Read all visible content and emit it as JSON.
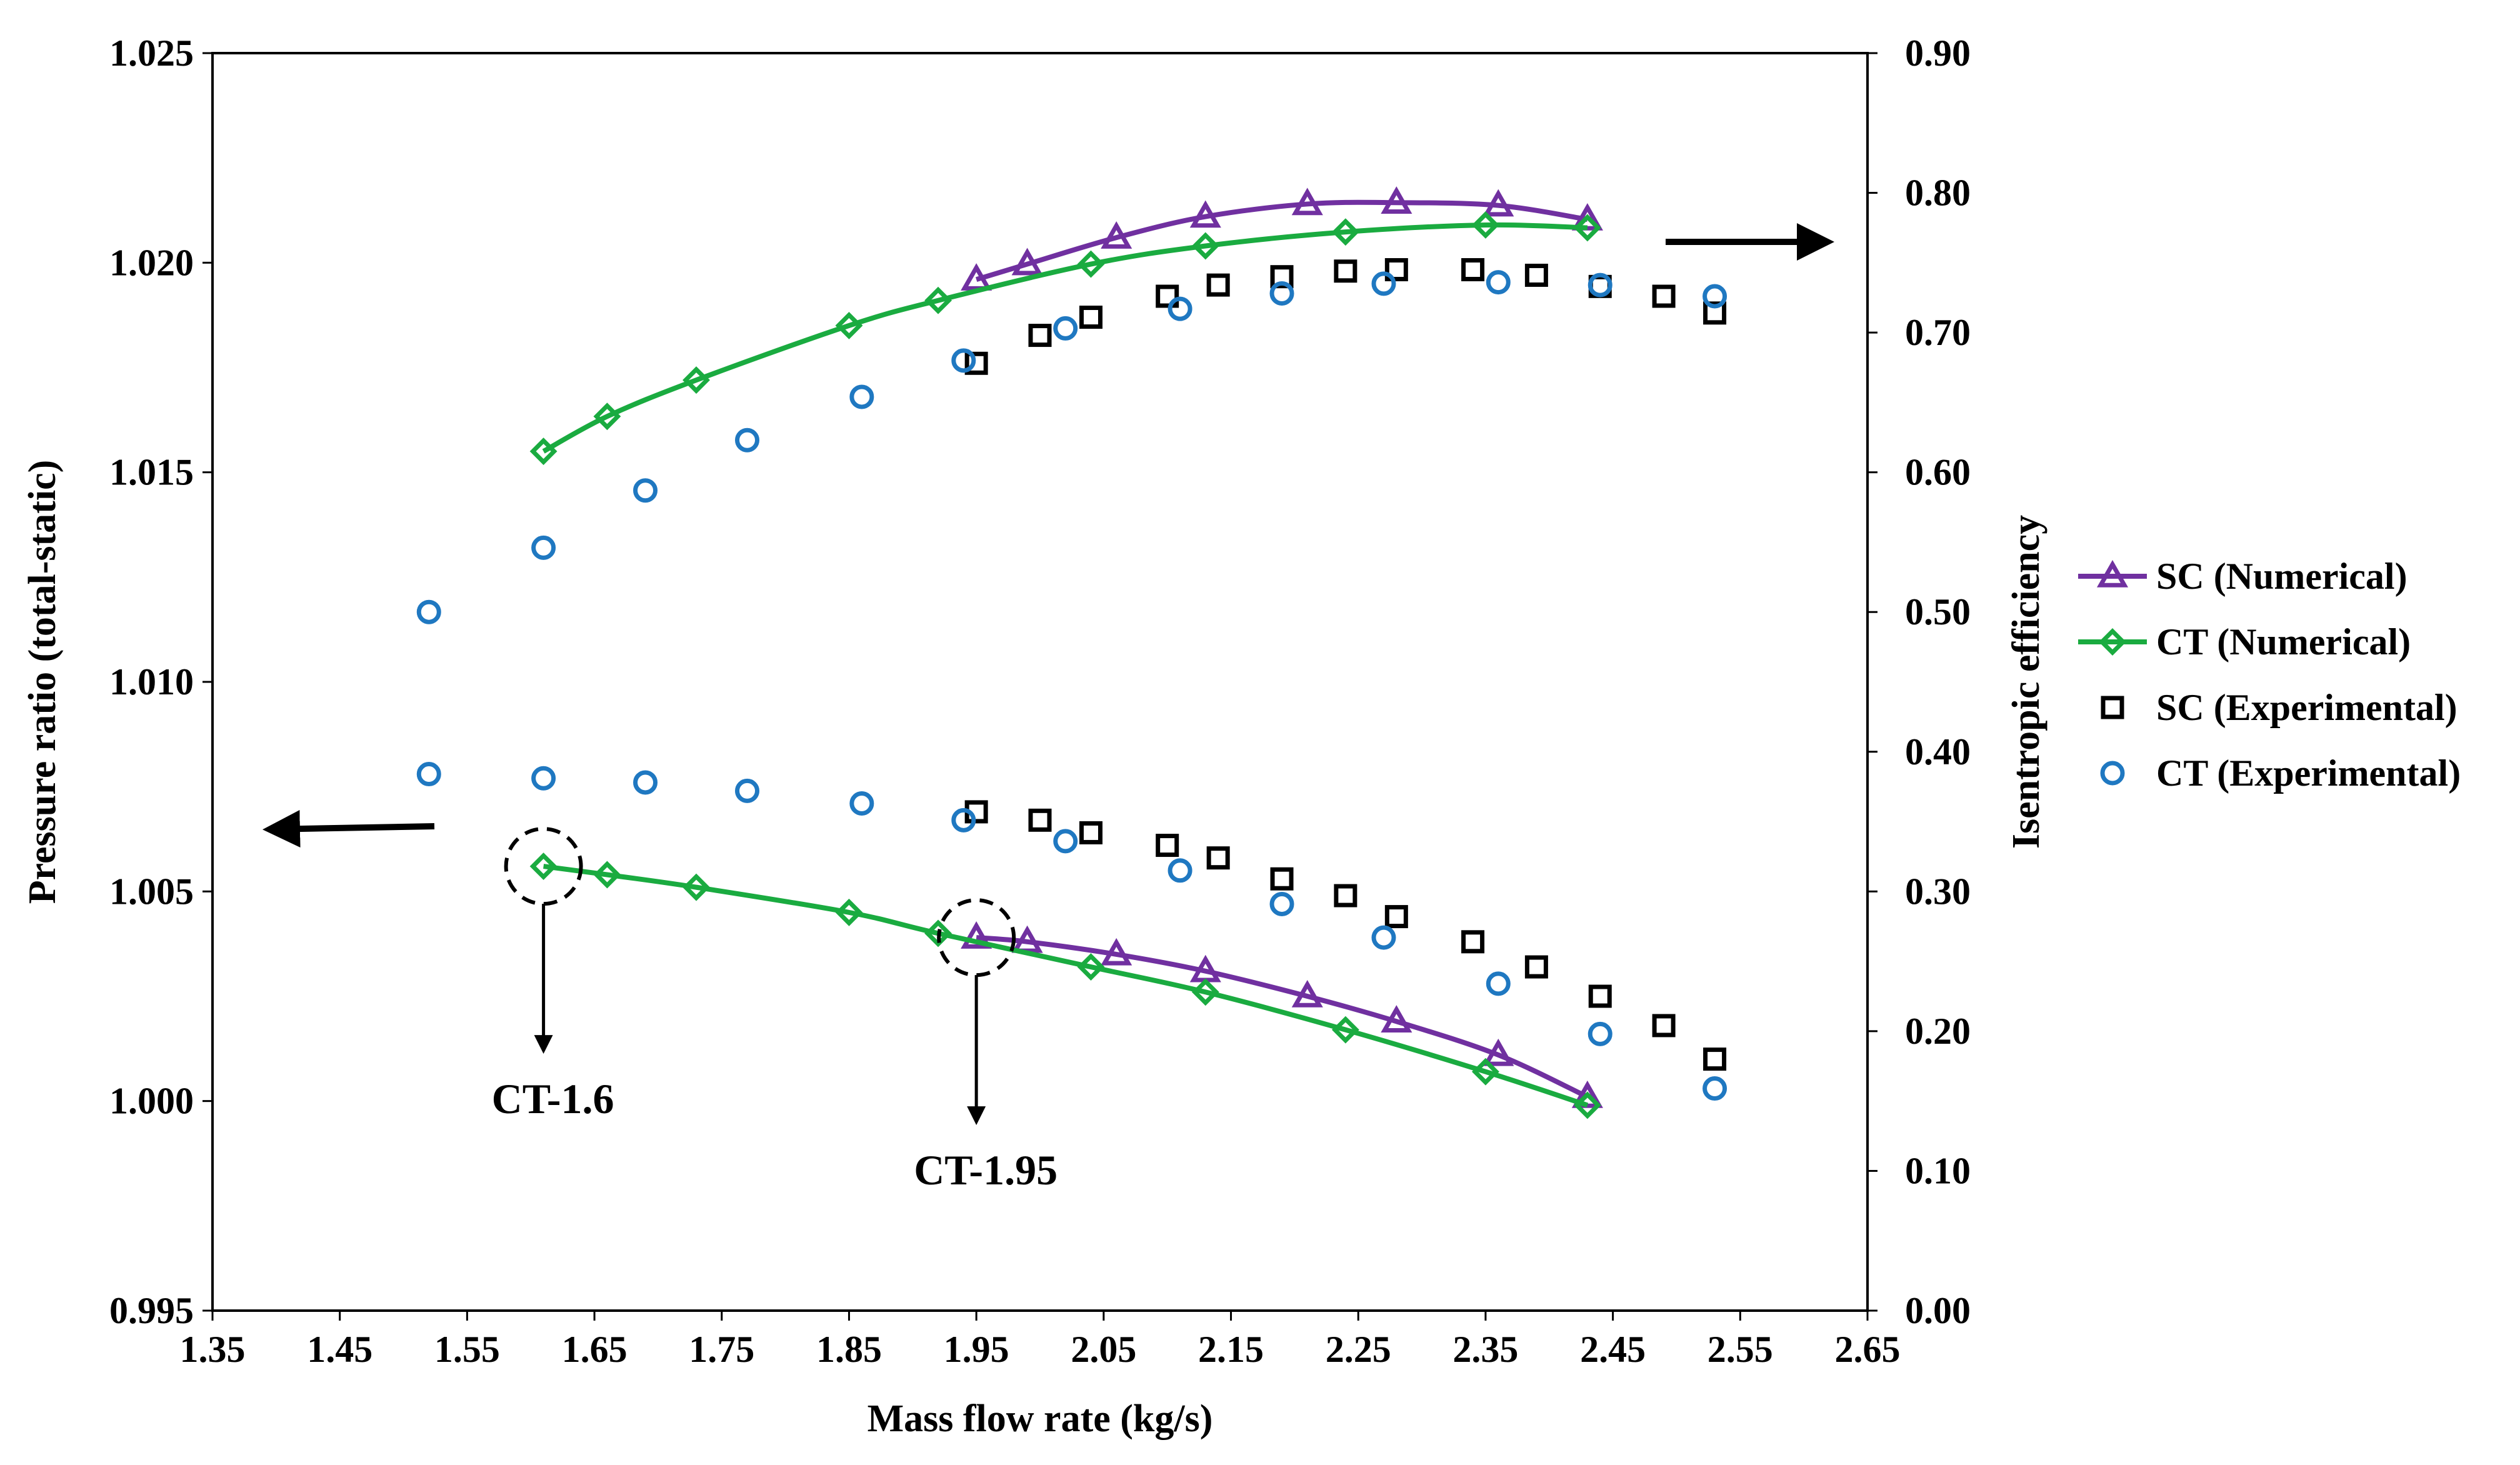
{
  "chart_data": {
    "type": "scatter",
    "xlabel": "Mass flow rate (kg/s)",
    "ylabel_left": "Pressure ratio (total-static)",
    "ylabel_right": "Isentropic efficiency",
    "xlim": [
      1.35,
      2.65
    ],
    "ylim_left": [
      0.995,
      1.025
    ],
    "ylim_right": [
      0.0,
      0.9
    ],
    "x_ticks": [
      "1.35",
      "1.45",
      "1.55",
      "1.65",
      "1.75",
      "1.85",
      "1.95",
      "2.05",
      "2.15",
      "2.25",
      "2.35",
      "2.45",
      "2.55",
      "2.65"
    ],
    "y_left_ticks": [
      "0.995",
      "1.000",
      "1.005",
      "1.010",
      "1.015",
      "1.020",
      "1.025"
    ],
    "y_right_ticks": [
      "0.00",
      "0.10",
      "0.20",
      "0.30",
      "0.40",
      "0.50",
      "0.60",
      "0.70",
      "0.80",
      "0.90"
    ],
    "legend_position": "right",
    "series": [
      {
        "name": "SC (Numerical)",
        "key": "sc_num",
        "marker": "triangle",
        "line": true,
        "color": "#7030A0",
        "efficiency": {
          "x": [
            1.95,
            1.99,
            2.06,
            2.13,
            2.21,
            2.28,
            2.36,
            2.43
          ],
          "y": [
            0.738,
            0.749,
            0.768,
            0.783,
            0.792,
            0.793,
            0.791,
            0.781
          ]
        },
        "pressure": {
          "x": [
            1.95,
            1.99,
            2.06,
            2.13,
            2.21,
            2.28,
            2.36,
            2.43
          ],
          "y": [
            1.0039,
            1.0038,
            1.0035,
            1.0031,
            1.0025,
            1.0019,
            1.0011,
            1.0001
          ]
        }
      },
      {
        "name": "CT (Numerical)",
        "key": "ct_num",
        "marker": "diamond",
        "line": true,
        "color": "#1AAB40",
        "efficiency": {
          "x": [
            1.61,
            1.66,
            1.73,
            1.85,
            1.92,
            2.04,
            2.13,
            2.24,
            2.35,
            2.43
          ],
          "y": [
            0.615,
            0.64,
            0.666,
            0.705,
            0.723,
            0.749,
            0.762,
            0.772,
            0.777,
            0.775
          ]
        },
        "pressure": {
          "x": [
            1.61,
            1.66,
            1.73,
            1.85,
            1.92,
            2.04,
            2.13,
            2.24,
            2.35,
            2.43
          ],
          "y": [
            1.0056,
            1.0054,
            1.0051,
            1.0045,
            1.004,
            1.0032,
            1.0026,
            1.0017,
            1.0007,
            0.9999
          ]
        }
      },
      {
        "name": "SC (Experimental)",
        "key": "sc_exp",
        "marker": "square",
        "line": false,
        "color": "#000000",
        "efficiency": {
          "x": [
            1.95,
            2.0,
            2.04,
            2.1,
            2.14,
            2.19,
            2.24,
            2.28,
            2.34,
            2.39,
            2.44,
            2.49,
            2.53
          ],
          "y": [
            0.678,
            0.698,
            0.711,
            0.726,
            0.734,
            0.74,
            0.744,
            0.745,
            0.745,
            0.741,
            0.733,
            0.726,
            0.714
          ]
        },
        "pressure": {
          "x": [
            1.95,
            2.0,
            2.04,
            2.1,
            2.14,
            2.19,
            2.24,
            2.28,
            2.34,
            2.39,
            2.44,
            2.49,
            2.53
          ],
          "y": [
            1.0069,
            1.0067,
            1.0064,
            1.0061,
            1.0058,
            1.0053,
            1.0049,
            1.0044,
            1.0038,
            1.0032,
            1.0025,
            1.0018,
            1.001
          ]
        }
      },
      {
        "name": "CT (Experimental)",
        "key": "ct_exp",
        "marker": "circle",
        "line": false,
        "color": "#1F78C1",
        "efficiency": {
          "x": [
            1.52,
            1.61,
            1.69,
            1.77,
            1.86,
            1.94,
            2.02,
            2.11,
            2.19,
            2.27,
            2.36,
            2.44,
            2.53
          ],
          "y": [
            0.5,
            0.546,
            0.587,
            0.623,
            0.654,
            0.68,
            0.703,
            0.717,
            0.728,
            0.735,
            0.736,
            0.734,
            0.726
          ]
        },
        "pressure": {
          "x": [
            1.52,
            1.61,
            1.69,
            1.77,
            1.86,
            1.94,
            2.02,
            2.11,
            2.19,
            2.27,
            2.36,
            2.44,
            2.53
          ],
          "y": [
            1.0078,
            1.0077,
            1.0076,
            1.0074,
            1.0071,
            1.0067,
            1.0062,
            1.0055,
            1.0047,
            1.0039,
            1.0028,
            1.0016,
            1.0003
          ]
        }
      }
    ],
    "annotations": [
      {
        "label": "CT-1.6",
        "x": 1.61,
        "y": 1.0056
      },
      {
        "label": "CT-1.95",
        "x": 1.95,
        "y": 1.0039
      }
    ]
  }
}
